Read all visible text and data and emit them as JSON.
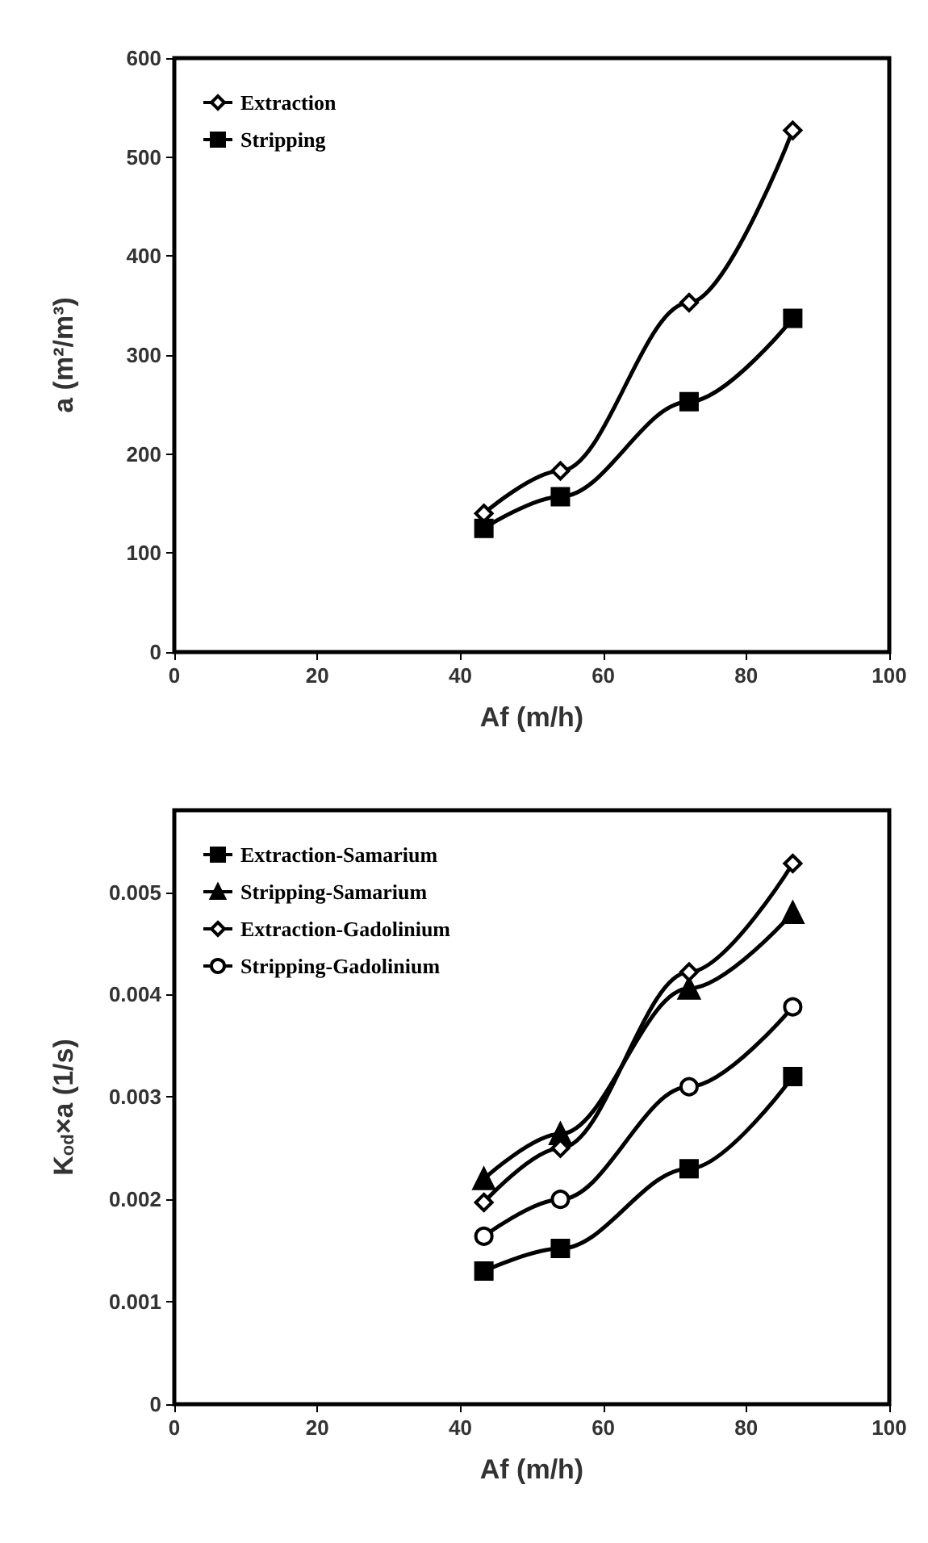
{
  "chart_data": [
    {
      "type": "line",
      "xlabel": "Af (m/h)",
      "ylabel": "a (m²/m³)",
      "xlim": [
        0,
        100
      ],
      "xticks": [
        0,
        20,
        40,
        60,
        80,
        100
      ],
      "ylim": [
        0,
        600
      ],
      "yticks": [
        0,
        100,
        200,
        300,
        400,
        500,
        600
      ],
      "legend": "top left",
      "grid": false,
      "x": [
        43.3,
        54,
        72,
        86.5
      ],
      "series": [
        {
          "name": "Extraction",
          "color": "#000000",
          "marker": "diamond",
          "values": [
            140,
            183,
            353,
            527
          ]
        },
        {
          "name": "Stripping",
          "color": "#000000",
          "marker": "square",
          "values": [
            125,
            157,
            253,
            337
          ]
        }
      ]
    },
    {
      "type": "line",
      "xlabel": "Af (m/h)",
      "ylabel": "K$_{od}$×a (1/s)",
      "xlim": [
        0,
        100
      ],
      "xticks": [
        0,
        20,
        40,
        60,
        80,
        100
      ],
      "ylim": [
        0,
        0.0058
      ],
      "yticks": [
        0,
        0.001,
        0.002,
        0.003,
        0.004,
        0.005
      ],
      "legend": "top left",
      "grid": false,
      "x": [
        43.3,
        54,
        72,
        86.5
      ],
      "series": [
        {
          "name": "Extraction-Samarium",
          "color": "#000000",
          "marker": "square",
          "values": [
            0.0013,
            0.00152,
            0.0023,
            0.0032
          ]
        },
        {
          "name": "Stripping-Samarium",
          "color": "#000000",
          "marker": "triangle",
          "values": [
            0.0022,
            0.00264,
            0.00406,
            0.0048
          ]
        },
        {
          "name": "Extraction-Gadolinium",
          "color": "#000000",
          "marker": "diamond",
          "values": [
            0.00197,
            0.0025,
            0.00422,
            0.00528
          ]
        },
        {
          "name": "Stripping-Gadolinium",
          "color": "#000000",
          "marker": "circle",
          "values": [
            0.00164,
            0.002,
            0.0031,
            0.00388
          ]
        }
      ]
    }
  ]
}
